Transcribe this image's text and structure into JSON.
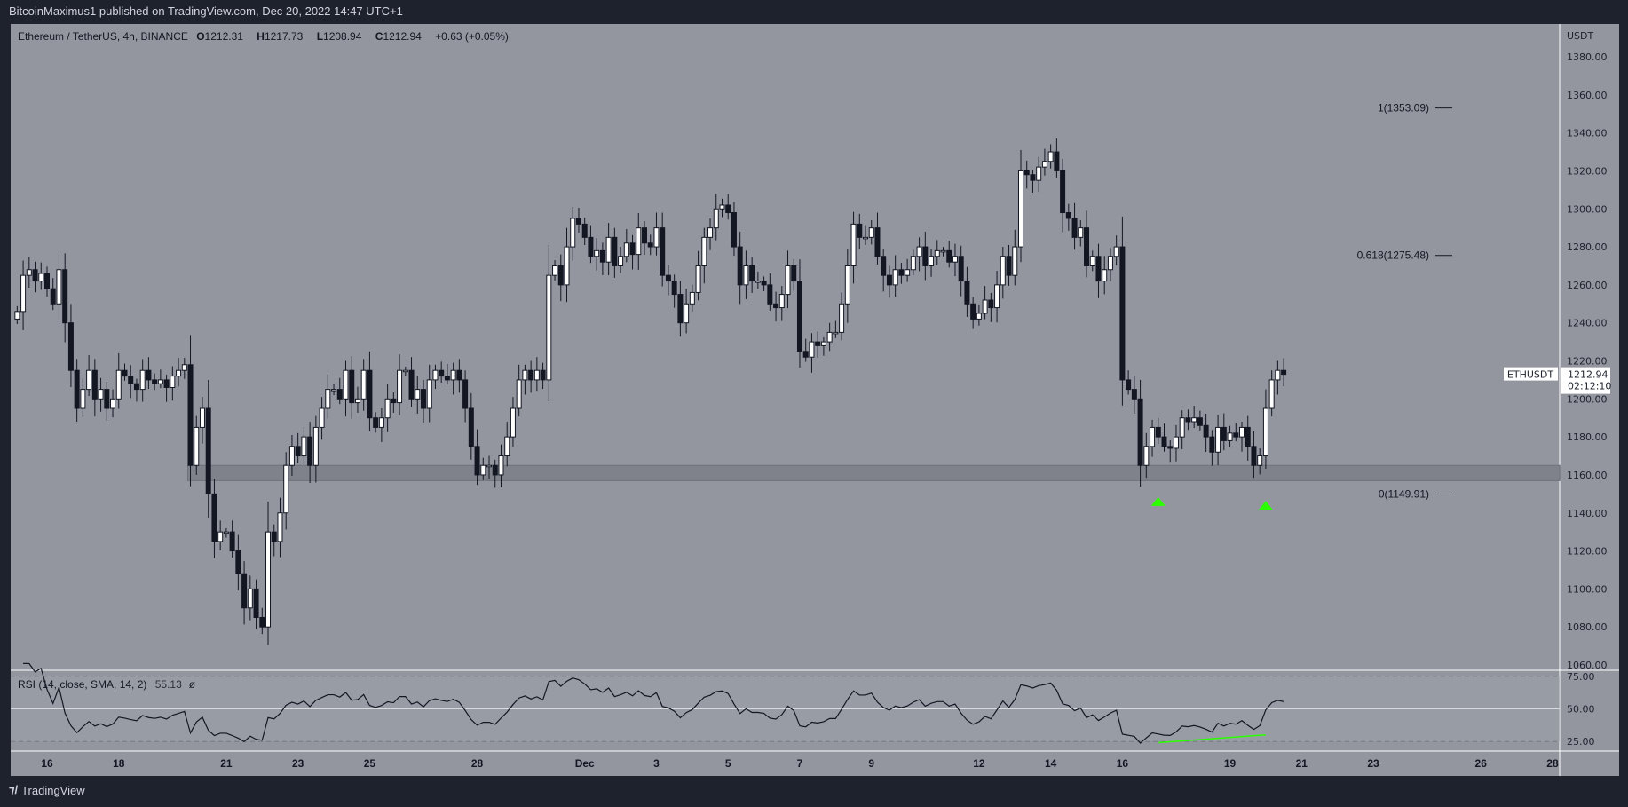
{
  "header": {
    "published": "BitcoinMaximus1 published on TradingView.com, Dec 20, 2022 14:47 UTC+1"
  },
  "legend": {
    "symbol": "Ethereum / TetherUS, 4h, BINANCE",
    "o_label": "O",
    "o": "1212.31",
    "h_label": "H",
    "h": "1217.73",
    "l_label": "L",
    "l": "1208.94",
    "c_label": "C",
    "c": "1212.94",
    "change": "+0.63 (+0.05%)"
  },
  "price_axis": {
    "unit": "USDT",
    "ticks": [
      "1380.00",
      "1360.00",
      "1340.00",
      "1320.00",
      "1300.00",
      "1280.00",
      "1260.00",
      "1240.00",
      "1220.00",
      "1200.00",
      "1180.00",
      "1160.00",
      "1140.00",
      "1120.00",
      "1100.00",
      "1080.00",
      "1060.00"
    ]
  },
  "last_price": {
    "symbol": "ETHUSDT",
    "price": "1212.94",
    "countdown": "02:12:10"
  },
  "fib": [
    {
      "label": "1(1353.09)",
      "price": 1353.09
    },
    {
      "label": "0.618(1275.48)",
      "price": 1275.48
    },
    {
      "label": "0(1149.91)",
      "price": 1149.91
    }
  ],
  "support_zone": {
    "low": 1157,
    "high": 1165,
    "start": "2022-11-20"
  },
  "markers": [
    {
      "date": "2022-12-17T00:00",
      "price": 1146,
      "color": "#2bff00",
      "icon": "triangle-up-icon"
    },
    {
      "date": "2022-12-20T00:00",
      "price": 1144,
      "color": "#2bff00",
      "icon": "triangle-up-icon"
    }
  ],
  "rsi": {
    "label": "RSI (14, close, SMA, 14, 2)",
    "value": "55.13",
    "extra": "ø",
    "ticks": [
      "75.00",
      "50.00",
      "25.00"
    ],
    "divergence_color": "#2bff00",
    "divergence": [
      {
        "date": "2022-12-17T00:00",
        "rsi": 24
      },
      {
        "date": "2022-12-20T00:00",
        "rsi": 30
      }
    ]
  },
  "time_axis": {
    "ticks": [
      {
        "label": "16",
        "date": "2022-11-16"
      },
      {
        "label": "18",
        "date": "2022-11-18"
      },
      {
        "label": "21",
        "date": "2022-11-21"
      },
      {
        "label": "23",
        "date": "2022-11-23"
      },
      {
        "label": "25",
        "date": "2022-11-25"
      },
      {
        "label": "28",
        "date": "2022-11-28"
      },
      {
        "label": "Dec",
        "date": "2022-12-01"
      },
      {
        "label": "3",
        "date": "2022-12-03"
      },
      {
        "label": "5",
        "date": "2022-12-05"
      },
      {
        "label": "7",
        "date": "2022-12-07"
      },
      {
        "label": "9",
        "date": "2022-12-09"
      },
      {
        "label": "12",
        "date": "2022-12-12"
      },
      {
        "label": "14",
        "date": "2022-12-14"
      },
      {
        "label": "16",
        "date": "2022-12-16"
      },
      {
        "label": "19",
        "date": "2022-12-19"
      },
      {
        "label": "21",
        "date": "2022-12-21"
      },
      {
        "label": "23",
        "date": "2022-12-23"
      },
      {
        "label": "26",
        "date": "2022-12-26"
      },
      {
        "label": "28",
        "date": "2022-12-28"
      }
    ]
  },
  "footer": {
    "brand": "TradingView"
  },
  "colors": {
    "background": "#1e222d",
    "pane": "#93969f",
    "up": "#ffffff",
    "down": "#131722"
  },
  "chart_data": {
    "type": "candlestick",
    "interval": "4h",
    "start": "2022-11-15T04:00",
    "ylim": [
      1060,
      1390
    ],
    "closes": [
      1246,
      1265,
      1268,
      1262,
      1266,
      1258,
      1250,
      1268,
      1240,
      1215,
      1195,
      1205,
      1215,
      1200,
      1205,
      1195,
      1200,
      1215,
      1212,
      1208,
      1205,
      1215,
      1210,
      1208,
      1210,
      1206,
      1212,
      1215,
      1218,
      1165,
      1185,
      1195,
      1150,
      1125,
      1130,
      1130,
      1120,
      1108,
      1090,
      1100,
      1085,
      1080,
      1130,
      1125,
      1140,
      1165,
      1175,
      1170,
      1180,
      1165,
      1185,
      1195,
      1205,
      1205,
      1200,
      1215,
      1198,
      1200,
      1215,
      1190,
      1185,
      1190,
      1200,
      1198,
      1215,
      1215,
      1200,
      1205,
      1195,
      1210,
      1215,
      1212,
      1210,
      1215,
      1210,
      1195,
      1175,
      1160,
      1165,
      1165,
      1160,
      1170,
      1180,
      1195,
      1210,
      1215,
      1210,
      1215,
      1210,
      1265,
      1270,
      1260,
      1280,
      1295,
      1292,
      1285,
      1275,
      1278,
      1272,
      1285,
      1270,
      1275,
      1282,
      1276,
      1290,
      1282,
      1280,
      1290,
      1265,
      1262,
      1255,
      1240,
      1250,
      1256,
      1270,
      1285,
      1290,
      1300,
      1302,
      1298,
      1280,
      1260,
      1270,
      1262,
      1262,
      1260,
      1250,
      1248,
      1255,
      1270,
      1262,
      1225,
      1222,
      1230,
      1228,
      1230,
      1235,
      1235,
      1250,
      1270,
      1292,
      1285,
      1285,
      1290,
      1275,
      1265,
      1260,
      1268,
      1265,
      1268,
      1275,
      1280,
      1270,
      1275,
      1278,
      1278,
      1272,
      1275,
      1262,
      1250,
      1242,
      1245,
      1252,
      1248,
      1260,
      1275,
      1265,
      1280,
      1320,
      1318,
      1315,
      1322,
      1325,
      1330,
      1320,
      1298,
      1295,
      1285,
      1290,
      1270,
      1275,
      1262,
      1268,
      1275,
      1280,
      1210,
      1205,
      1200,
      1165,
      1175,
      1185,
      1180,
      1175,
      1174,
      1180,
      1190,
      1188,
      1190,
      1186,
      1180,
      1172,
      1185,
      1178,
      1182,
      1180,
      1185,
      1175,
      1165,
      1170,
      1195,
      1210,
      1215,
      1212.94
    ]
  }
}
